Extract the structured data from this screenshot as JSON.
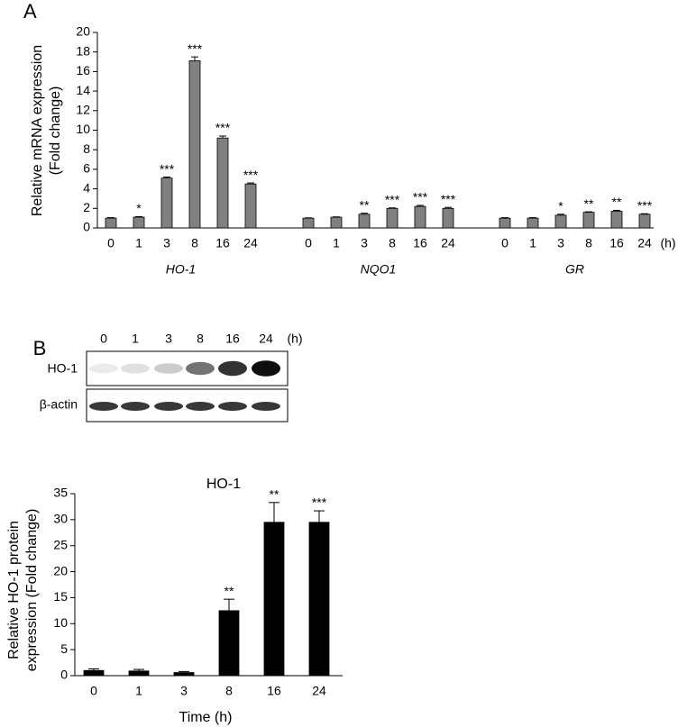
{
  "chart_data": [
    {
      "type": "bar",
      "panel": "A",
      "ylabel": [
        "Relative mRNA expression",
        "(Fold change)"
      ],
      "x_unit": "(h)",
      "color": "#808080",
      "ylim": [
        0,
        20
      ],
      "yticks": [
        0,
        2,
        4,
        6,
        8,
        10,
        12,
        14,
        16,
        18,
        20
      ],
      "groups": [
        {
          "name": "HO-1",
          "categories": [
            "0",
            "1",
            "3",
            "8",
            "16",
            "24"
          ],
          "values": [
            1,
            1.1,
            5.1,
            17.1,
            9.2,
            4.5
          ],
          "errors": [
            0.05,
            0.05,
            0.1,
            0.4,
            0.2,
            0.1
          ],
          "significance": [
            null,
            "*",
            "***",
            "***",
            "***",
            "***"
          ]
        },
        {
          "name": "NQO1",
          "categories": [
            "0",
            "1",
            "3",
            "8",
            "16",
            "24"
          ],
          "values": [
            1,
            1.1,
            1.4,
            2.0,
            2.2,
            2.0
          ],
          "errors": [
            0.03,
            0.03,
            0.1,
            0.05,
            0.1,
            0.1
          ],
          "significance": [
            null,
            null,
            "**",
            "***",
            "***",
            "***"
          ]
        },
        {
          "name": "GR",
          "categories": [
            "0",
            "1",
            "3",
            "8",
            "16",
            "24"
          ],
          "values": [
            1.0,
            1.0,
            1.3,
            1.6,
            1.7,
            1.4
          ],
          "errors": [
            0.05,
            0.05,
            0.1,
            0.05,
            0.1,
            0.05
          ],
          "significance": [
            null,
            null,
            "*",
            "**",
            "**",
            "***"
          ]
        }
      ]
    },
    {
      "type": "bar",
      "title": "HO-1",
      "ylabel": [
        "Relative HO-1 protein",
        "expression (Fold change)"
      ],
      "xlabel": "Time (h)",
      "color": "#000000",
      "categories": [
        "0",
        "1",
        "3",
        "8",
        "16",
        "24"
      ],
      "values": [
        1,
        0.9,
        0.6,
        12.5,
        29.5,
        29.5
      ],
      "errors": [
        0.3,
        0.3,
        0.2,
        2.2,
        3.8,
        2.2
      ],
      "significance": [
        null,
        null,
        null,
        "**",
        "**",
        "***"
      ],
      "ylim": [
        0,
        35
      ],
      "yticks": [
        0,
        5,
        10,
        15,
        20,
        25,
        30,
        35
      ]
    }
  ],
  "blot": {
    "panel": "B",
    "lanes": [
      "0",
      "1",
      "3",
      "8",
      "16",
      "24"
    ],
    "unit": "(h)",
    "rows": [
      "HO-1",
      "β-actin"
    ]
  }
}
